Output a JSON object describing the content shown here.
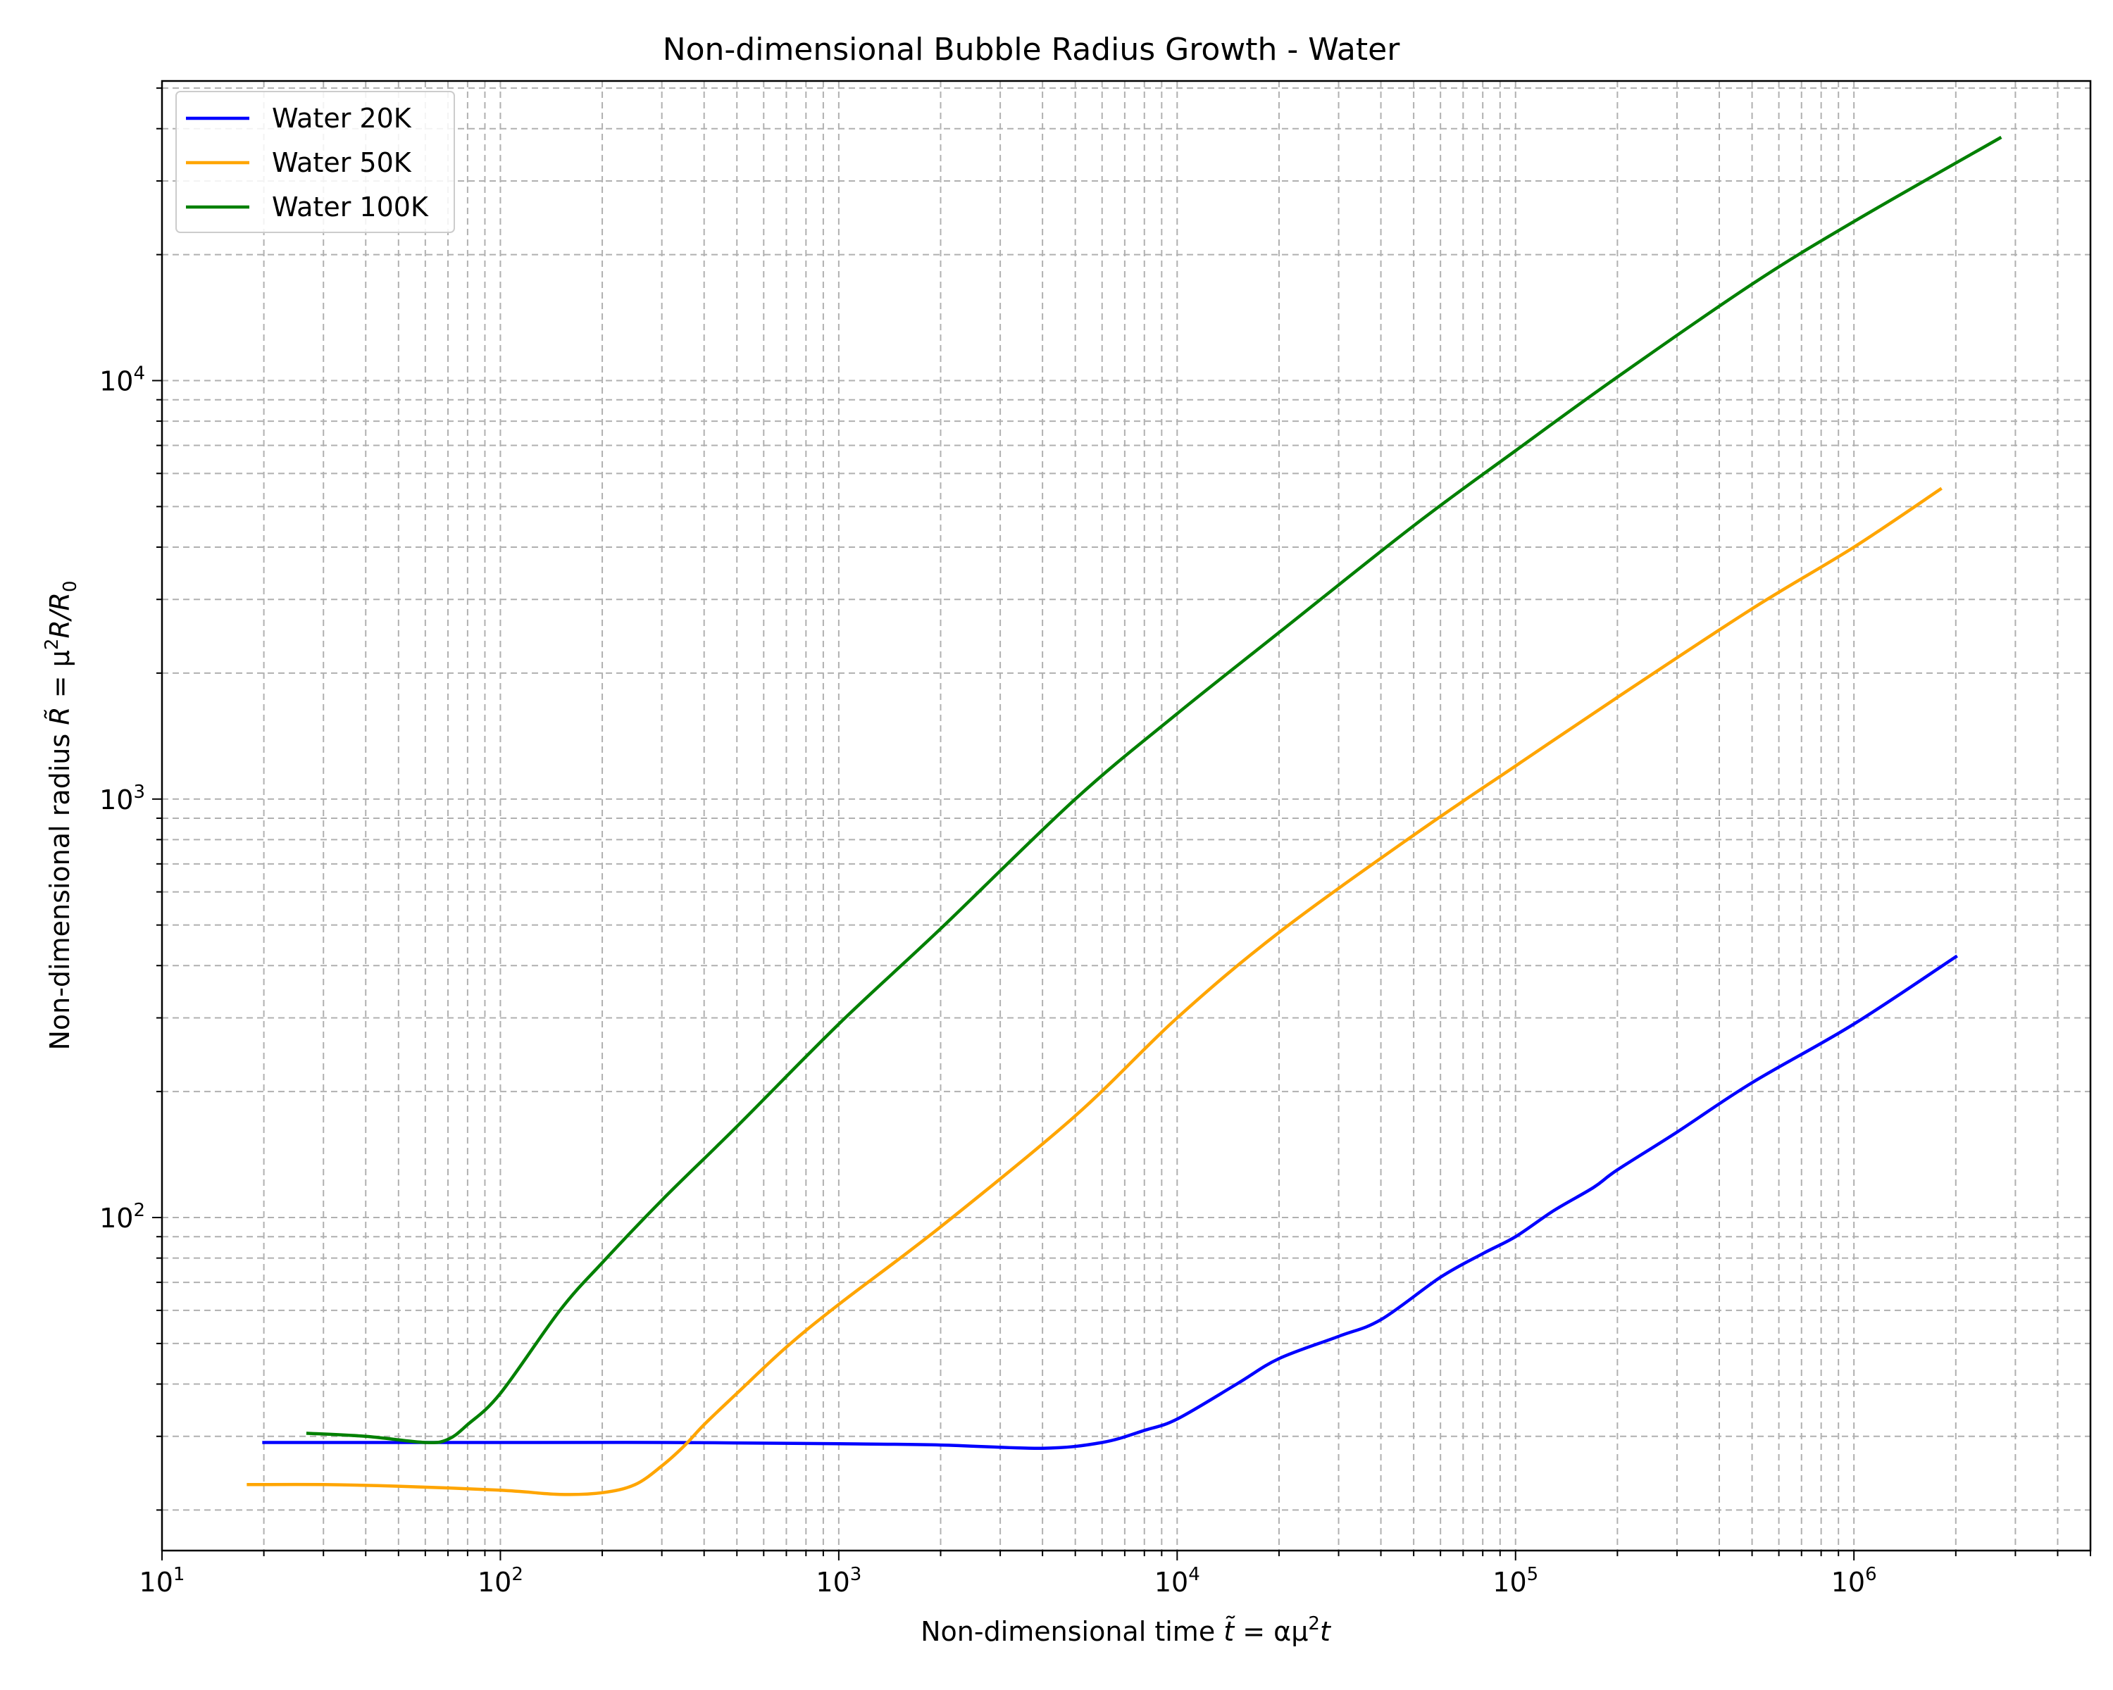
{
  "chart_data": {
    "type": "line",
    "title": "Non-dimensional Bubble Radius Growth - Water",
    "xlabel": {
      "prefix": "Non-dimensional time ",
      "symbol": "t̃",
      "eq": " = αμ",
      "sup": "2",
      "tail": "t"
    },
    "ylabel": {
      "prefix": "Non-dimensional radius ",
      "symbol": "R̃",
      "eq": " = μ",
      "sup": "2",
      "mid": "R/R",
      "sub": "0"
    },
    "xscale": "log",
    "yscale": "log",
    "xlim": [
      10,
      5000000
    ],
    "ylim": [
      16,
      52000
    ],
    "grid": "both",
    "legend_position": "top-left",
    "x_ticks": [
      {
        "value": 10,
        "base": "10",
        "exp": "1"
      },
      {
        "value": 100,
        "base": "10",
        "exp": "2"
      },
      {
        "value": 1000,
        "base": "10",
        "exp": "3"
      },
      {
        "value": 10000,
        "base": "10",
        "exp": "4"
      },
      {
        "value": 100000,
        "base": "10",
        "exp": "5"
      },
      {
        "value": 1000000,
        "base": "10",
        "exp": "6"
      }
    ],
    "y_ticks": [
      {
        "value": 100,
        "base": "10",
        "exp": "2"
      },
      {
        "value": 1000,
        "base": "10",
        "exp": "3"
      },
      {
        "value": 10000,
        "base": "10",
        "exp": "4"
      }
    ],
    "series": [
      {
        "name": "Water 20K",
        "color": "#0000ff",
        "x": [
          20,
          50,
          100,
          300,
          1000,
          2000,
          4000,
          6000,
          8000,
          10000,
          15000,
          20000,
          30000,
          40000,
          60000,
          80000,
          100000,
          130000,
          170000,
          200000,
          300000,
          500000,
          1000000,
          2000000
        ],
        "y": [
          29,
          29,
          29,
          29,
          28.8,
          28.6,
          28.1,
          29,
          31,
          33,
          40,
          46,
          52,
          57,
          72,
          82,
          90,
          104,
          118,
          130,
          160,
          210,
          290,
          420
        ]
      },
      {
        "name": "Water 50K",
        "color": "#ffa500",
        "x": [
          18,
          30,
          50,
          100,
          150,
          200,
          250,
          300,
          350,
          400,
          500,
          700,
          1000,
          2000,
          5000,
          10000,
          20000,
          50000,
          100000,
          200000,
          500000,
          1000000,
          1800000
        ],
        "y": [
          23,
          23,
          22.8,
          22.3,
          21.8,
          22,
          23,
          25.5,
          28.5,
          32,
          38,
          49,
          62,
          95,
          175,
          300,
          480,
          820,
          1200,
          1750,
          2850,
          4000,
          5500
        ]
      },
      {
        "name": "Water 100K",
        "color": "#008000",
        "x": [
          27,
          40,
          60,
          70,
          80,
          100,
          150,
          200,
          300,
          500,
          1000,
          2000,
          5000,
          10000,
          20000,
          50000,
          100000,
          200000,
          500000,
          1000000,
          2700000
        ],
        "y": [
          30.5,
          30,
          29,
          29.5,
          32,
          38,
          60,
          78,
          110,
          165,
          290,
          490,
          1000,
          1600,
          2500,
          4500,
          6800,
          10200,
          17000,
          24000,
          38000
        ]
      }
    ]
  }
}
